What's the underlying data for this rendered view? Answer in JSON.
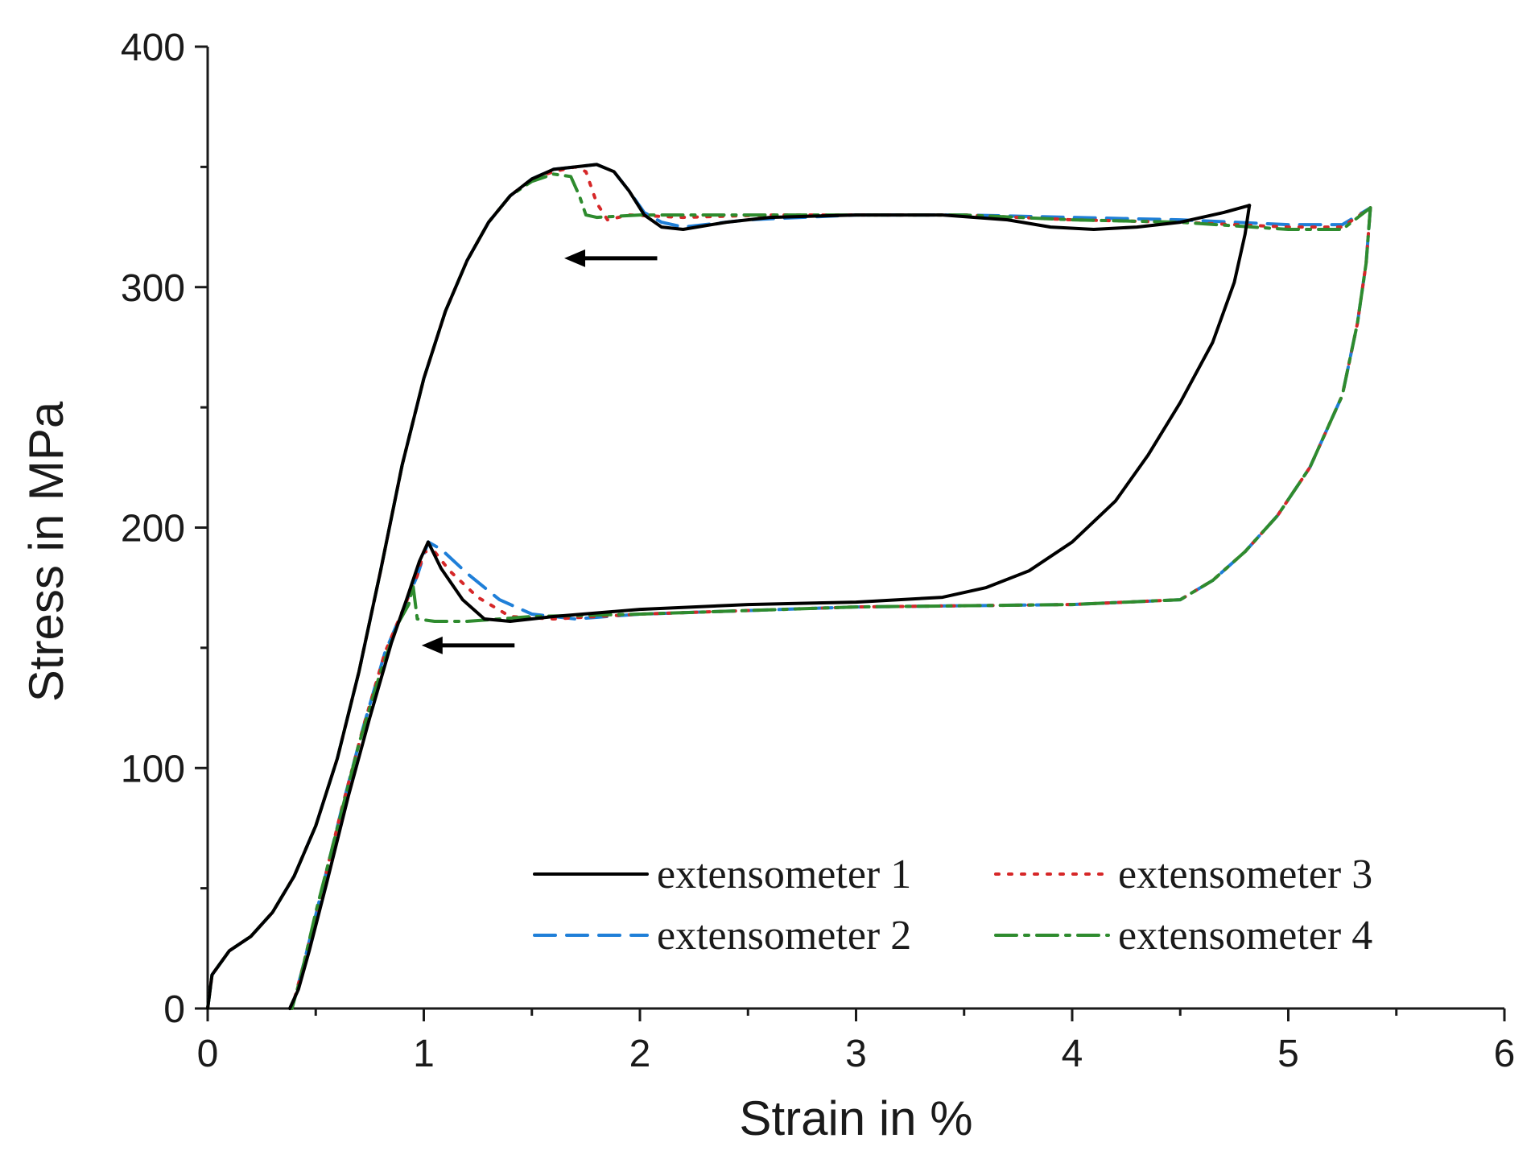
{
  "chart_data": {
    "type": "line",
    "title": "",
    "xlabel": "Strain in %",
    "ylabel": "Stress in MPa",
    "xlim": [
      0,
      6
    ],
    "ylim": [
      0,
      400
    ],
    "x_ticks": [
      "0",
      "1",
      "2",
      "3",
      "4",
      "5",
      "6"
    ],
    "y_ticks": [
      "0",
      "100",
      "200",
      "300",
      "400"
    ],
    "grid": false,
    "legend_position": "bottom-right",
    "series": [
      {
        "name": "extensometer 1",
        "color": "#000000",
        "style": "solid",
        "loading": [
          [
            0,
            0
          ],
          [
            0.02,
            14
          ],
          [
            0.1,
            24
          ],
          [
            0.2,
            30
          ],
          [
            0.3,
            40
          ],
          [
            0.4,
            55
          ],
          [
            0.5,
            76
          ],
          [
            0.6,
            104
          ],
          [
            0.7,
            140
          ],
          [
            0.8,
            182
          ],
          [
            0.9,
            226
          ],
          [
            1.0,
            262
          ],
          [
            1.1,
            290
          ],
          [
            1.2,
            311
          ],
          [
            1.3,
            327
          ],
          [
            1.4,
            338
          ],
          [
            1.5,
            345
          ],
          [
            1.6,
            349
          ],
          [
            1.7,
            350
          ],
          [
            1.8,
            351
          ],
          [
            1.88,
            348
          ],
          [
            1.95,
            340
          ],
          [
            2.02,
            330
          ],
          [
            2.1,
            325
          ],
          [
            2.2,
            324
          ],
          [
            2.4,
            327
          ],
          [
            2.6,
            329
          ],
          [
            3.0,
            330
          ],
          [
            3.4,
            330
          ],
          [
            3.7,
            328
          ],
          [
            3.9,
            325
          ],
          [
            4.1,
            324
          ],
          [
            4.3,
            325
          ],
          [
            4.5,
            327
          ],
          [
            4.7,
            331
          ],
          [
            4.82,
            334
          ]
        ],
        "unloading": [
          [
            4.82,
            334
          ],
          [
            4.8,
            322
          ],
          [
            4.75,
            302
          ],
          [
            4.65,
            277
          ],
          [
            4.5,
            252
          ],
          [
            4.35,
            230
          ],
          [
            4.2,
            211
          ],
          [
            4.0,
            194
          ],
          [
            3.8,
            182
          ],
          [
            3.6,
            175
          ],
          [
            3.4,
            171
          ],
          [
            3.0,
            169
          ],
          [
            2.5,
            168
          ],
          [
            2.0,
            166
          ],
          [
            1.6,
            163
          ],
          [
            1.4,
            161
          ],
          [
            1.28,
            162
          ],
          [
            1.18,
            170
          ],
          [
            1.08,
            183
          ],
          [
            1.02,
            194
          ],
          [
            0.98,
            186
          ],
          [
            0.92,
            170
          ],
          [
            0.85,
            152
          ],
          [
            0.75,
            121
          ],
          [
            0.65,
            88
          ],
          [
            0.55,
            52
          ],
          [
            0.47,
            24
          ],
          [
            0.42,
            8
          ],
          [
            0.38,
            0
          ]
        ]
      },
      {
        "name": "extensometer 2",
        "color": "#1f7fd8",
        "style": "dashed",
        "loading": [
          [
            0,
            0
          ],
          [
            0.02,
            14
          ],
          [
            0.1,
            24
          ],
          [
            0.2,
            30
          ],
          [
            0.3,
            40
          ],
          [
            0.4,
            55
          ],
          [
            0.5,
            76
          ],
          [
            0.6,
            104
          ],
          [
            0.7,
            140
          ],
          [
            0.8,
            182
          ],
          [
            0.9,
            226
          ],
          [
            1.0,
            262
          ],
          [
            1.1,
            290
          ],
          [
            1.2,
            311
          ],
          [
            1.3,
            327
          ],
          [
            1.4,
            338
          ],
          [
            1.5,
            345
          ],
          [
            1.6,
            349
          ],
          [
            1.7,
            350
          ],
          [
            1.8,
            351
          ],
          [
            1.88,
            348
          ],
          [
            1.95,
            340
          ],
          [
            2.02,
            331
          ],
          [
            2.1,
            327
          ],
          [
            2.2,
            325
          ],
          [
            2.5,
            328
          ],
          [
            3.0,
            330
          ],
          [
            3.5,
            330
          ],
          [
            4.0,
            329
          ],
          [
            4.5,
            328
          ],
          [
            5.0,
            326
          ],
          [
            5.25,
            326
          ],
          [
            5.38,
            333
          ]
        ],
        "unloading": [
          [
            5.38,
            333
          ],
          [
            5.36,
            310
          ],
          [
            5.32,
            285
          ],
          [
            5.25,
            255
          ],
          [
            5.1,
            225
          ],
          [
            4.95,
            205
          ],
          [
            4.8,
            190
          ],
          [
            4.65,
            178
          ],
          [
            4.5,
            170
          ],
          [
            4.0,
            168
          ],
          [
            3.0,
            167
          ],
          [
            2.0,
            164
          ],
          [
            1.7,
            162
          ],
          [
            1.5,
            164
          ],
          [
            1.35,
            170
          ],
          [
            1.2,
            181
          ],
          [
            1.08,
            191
          ],
          [
            1.02,
            194
          ],
          [
            0.97,
            180
          ],
          [
            0.9,
            165
          ],
          [
            0.82,
            148
          ],
          [
            0.72,
            117
          ],
          [
            0.62,
            83
          ],
          [
            0.52,
            46
          ],
          [
            0.44,
            17
          ],
          [
            0.39,
            0
          ]
        ]
      },
      {
        "name": "extensometer 3",
        "color": "#d62728",
        "style": "dotted",
        "loading": [
          [
            0,
            0
          ],
          [
            0.02,
            14
          ],
          [
            0.1,
            24
          ],
          [
            0.2,
            30
          ],
          [
            0.3,
            40
          ],
          [
            0.4,
            55
          ],
          [
            0.5,
            76
          ],
          [
            0.6,
            104
          ],
          [
            0.7,
            140
          ],
          [
            0.8,
            182
          ],
          [
            0.9,
            226
          ],
          [
            1.0,
            262
          ],
          [
            1.1,
            290
          ],
          [
            1.2,
            311
          ],
          [
            1.3,
            327
          ],
          [
            1.4,
            338
          ],
          [
            1.5,
            345
          ],
          [
            1.6,
            348
          ],
          [
            1.7,
            350
          ],
          [
            1.75,
            348
          ],
          [
            1.8,
            335
          ],
          [
            1.85,
            328
          ],
          [
            1.95,
            330
          ],
          [
            2.2,
            329
          ],
          [
            2.6,
            330
          ],
          [
            3.0,
            330
          ],
          [
            3.5,
            330
          ],
          [
            4.0,
            328
          ],
          [
            4.5,
            327
          ],
          [
            5.0,
            325
          ],
          [
            5.25,
            325
          ],
          [
            5.38,
            333
          ]
        ],
        "unloading": [
          [
            5.38,
            333
          ],
          [
            5.36,
            310
          ],
          [
            5.32,
            285
          ],
          [
            5.25,
            255
          ],
          [
            5.1,
            225
          ],
          [
            4.95,
            205
          ],
          [
            4.8,
            190
          ],
          [
            4.65,
            178
          ],
          [
            4.5,
            170
          ],
          [
            4.0,
            168
          ],
          [
            3.0,
            167
          ],
          [
            2.0,
            164
          ],
          [
            1.6,
            162
          ],
          [
            1.4,
            163
          ],
          [
            1.25,
            171
          ],
          [
            1.12,
            182
          ],
          [
            1.05,
            190
          ],
          [
            1.0,
            190
          ],
          [
            0.97,
            180
          ],
          [
            0.9,
            165
          ],
          [
            0.82,
            148
          ],
          [
            0.72,
            117
          ],
          [
            0.62,
            83
          ],
          [
            0.52,
            46
          ],
          [
            0.44,
            17
          ],
          [
            0.39,
            0
          ]
        ]
      },
      {
        "name": "extensometer 4",
        "color": "#2e8b2e",
        "style": "dashdot",
        "loading": [
          [
            0,
            0
          ],
          [
            0.02,
            14
          ],
          [
            0.1,
            24
          ],
          [
            0.2,
            30
          ],
          [
            0.3,
            40
          ],
          [
            0.4,
            55
          ],
          [
            0.5,
            76
          ],
          [
            0.6,
            104
          ],
          [
            0.7,
            140
          ],
          [
            0.8,
            182
          ],
          [
            0.9,
            226
          ],
          [
            1.0,
            262
          ],
          [
            1.1,
            290
          ],
          [
            1.2,
            311
          ],
          [
            1.3,
            327
          ],
          [
            1.4,
            338
          ],
          [
            1.5,
            344
          ],
          [
            1.6,
            347
          ],
          [
            1.68,
            346
          ],
          [
            1.72,
            338
          ],
          [
            1.75,
            330
          ],
          [
            1.8,
            329
          ],
          [
            2.0,
            330
          ],
          [
            2.5,
            330
          ],
          [
            3.0,
            330
          ],
          [
            3.5,
            330
          ],
          [
            4.0,
            328
          ],
          [
            4.5,
            327
          ],
          [
            5.0,
            324
          ],
          [
            5.25,
            324
          ],
          [
            5.38,
            333
          ]
        ],
        "unloading": [
          [
            5.38,
            333
          ],
          [
            5.36,
            310
          ],
          [
            5.32,
            285
          ],
          [
            5.25,
            255
          ],
          [
            5.1,
            225
          ],
          [
            4.95,
            205
          ],
          [
            4.8,
            190
          ],
          [
            4.65,
            178
          ],
          [
            4.5,
            170
          ],
          [
            4.0,
            168
          ],
          [
            3.0,
            167
          ],
          [
            2.0,
            164
          ],
          [
            1.5,
            163
          ],
          [
            1.2,
            161
          ],
          [
            1.05,
            161
          ],
          [
            0.97,
            162
          ],
          [
            0.95,
            176
          ],
          [
            0.93,
            168
          ],
          [
            0.88,
            160
          ],
          [
            0.8,
            140
          ],
          [
            0.7,
            110
          ],
          [
            0.6,
            75
          ],
          [
            0.5,
            40
          ],
          [
            0.43,
            13
          ],
          [
            0.39,
            0
          ]
        ]
      }
    ],
    "annotations": [
      {
        "type": "arrow",
        "from": [
          2.08,
          312
        ],
        "to": [
          1.65,
          312
        ]
      },
      {
        "type": "arrow",
        "from": [
          1.42,
          151
        ],
        "to": [
          0.99,
          151
        ]
      }
    ]
  }
}
